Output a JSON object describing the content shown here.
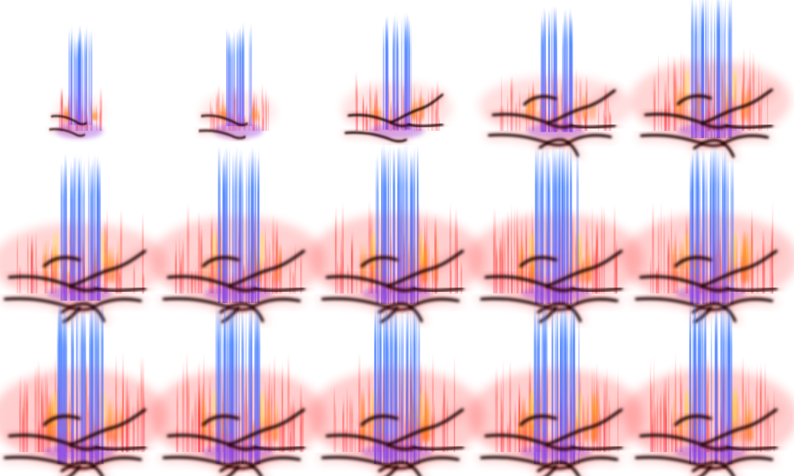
{
  "figure": {
    "rows": 3,
    "cols": 5,
    "background": "#ffffff",
    "colors": {
      "blue": "#3d7bff",
      "red": "#ff2a2a",
      "orange": "#ff8c1a",
      "yellow": "#ffe14d",
      "purple": "#8a2be2",
      "dark": "#160404"
    },
    "panels": [
      {
        "step": 1,
        "growth": 0.12,
        "flame": 0.25
      },
      {
        "step": 2,
        "growth": 0.3,
        "flame": 0.3
      },
      {
        "step": 3,
        "growth": 0.55,
        "flame": 0.45
      },
      {
        "step": 4,
        "growth": 0.85,
        "flame": 0.55
      },
      {
        "step": 5,
        "growth": 0.9,
        "flame": 0.8
      },
      {
        "step": 6,
        "growth": 1.0,
        "flame": 0.8
      },
      {
        "step": 7,
        "growth": 1.0,
        "flame": 0.9
      },
      {
        "step": 8,
        "growth": 1.0,
        "flame": 0.95
      },
      {
        "step": 9,
        "growth": 1.0,
        "flame": 0.95
      },
      {
        "step": 10,
        "growth": 1.0,
        "flame": 0.95
      },
      {
        "step": 11,
        "growth": 1.0,
        "flame": 1.0
      },
      {
        "step": 12,
        "growth": 1.0,
        "flame": 1.0
      },
      {
        "step": 13,
        "growth": 1.0,
        "flame": 1.0
      },
      {
        "step": 14,
        "growth": 1.0,
        "flame": 1.0
      },
      {
        "step": 15,
        "growth": 1.0,
        "flame": 1.0
      }
    ]
  }
}
